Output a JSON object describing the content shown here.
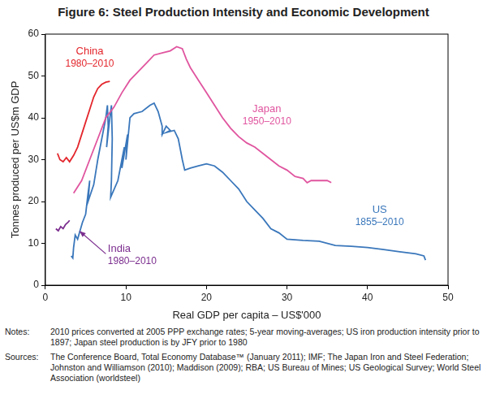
{
  "chart_data": {
    "type": "line",
    "title": "Figure 6: Steel Production Intensity and Economic Development",
    "x_label": "Real GDP per capita – US$'000",
    "y_label": "Tonnes produced per US$m GDP",
    "xlim": [
      0,
      50
    ],
    "xticks": [
      0,
      10,
      20,
      30,
      40,
      50
    ],
    "ylim": [
      0,
      60
    ],
    "yticks": [
      0,
      10,
      20,
      30,
      40,
      50,
      60
    ],
    "grid": false,
    "series": [
      {
        "name": "China",
        "color": "#e3262c",
        "x": [
          1.5,
          1.8,
          2.2,
          2.6,
          3.0,
          3.5,
          4.0,
          4.5,
          5.0,
          5.5,
          6.0,
          6.5,
          7.0,
          7.5,
          8.0
        ],
        "values": [
          31.5,
          30,
          29.5,
          30.5,
          29.5,
          31,
          33,
          36,
          39,
          42,
          45,
          47,
          48,
          48.5,
          48.7
        ]
      },
      {
        "name": "Japan",
        "color": "#e0559f",
        "x": [
          3.5,
          4.5,
          5.5,
          6.5,
          7.5,
          8.5,
          9.5,
          10.5,
          11.5,
          12.5,
          13.5,
          14.5,
          15.5,
          16.3,
          17,
          17.5,
          18,
          19,
          20,
          21,
          22,
          23,
          24,
          25,
          26,
          27,
          28,
          29,
          30,
          31,
          32,
          32.5,
          33,
          34,
          35,
          35.5
        ],
        "values": [
          22,
          25,
          30,
          35,
          40,
          42.5,
          46,
          49,
          51,
          53,
          55,
          55.5,
          56,
          57,
          56.5,
          54,
          52,
          49,
          46,
          43,
          40,
          37.5,
          35.5,
          34,
          33,
          31.5,
          30,
          28.5,
          27.5,
          26,
          25.5,
          24.5,
          25,
          25,
          25,
          24.5
        ]
      },
      {
        "name": "US",
        "color": "#3a77bb",
        "x": [
          3.2,
          3.4,
          3.5,
          3.7,
          4.0,
          4.3,
          4.6,
          5.0,
          5.3,
          5.5,
          5.3,
          6.0,
          6.5,
          7.0,
          7.5,
          7.7,
          7.8,
          7.6,
          8.0,
          8.2,
          8.3,
          8.2,
          8.1,
          9.0,
          9.5,
          9.8,
          9.5,
          10.2,
          10.0,
          10.5,
          11,
          12,
          13,
          13.5,
          14,
          14.5,
          14.5,
          15,
          15.5,
          15,
          16,
          16.5,
          16.8,
          17,
          17.3,
          18,
          19,
          20,
          21,
          22,
          23,
          24,
          25,
          26,
          27,
          28,
          29,
          30,
          32,
          34,
          36,
          38,
          40,
          42,
          44,
          46,
          47,
          47.2
        ],
        "values": [
          7,
          6.5,
          9,
          12,
          11,
          13,
          15,
          17,
          22,
          25,
          20,
          24,
          30,
          35,
          40,
          43,
          38,
          33,
          40,
          43,
          35,
          25,
          21,
          25,
          30,
          33,
          28,
          36,
          30,
          40,
          41,
          41.5,
          43,
          43.5,
          41.5,
          38,
          36,
          38,
          37,
          36.5,
          37,
          35,
          32,
          30,
          27.5,
          28,
          28.5,
          29,
          28.5,
          27,
          25,
          23,
          20,
          18,
          16,
          13.5,
          12.5,
          11,
          10.7,
          10.5,
          9.5,
          9.3,
          9,
          8.5,
          8,
          7.5,
          7,
          6
        ]
      },
      {
        "name": "India",
        "color": "#7b2d8e",
        "x": [
          1.3,
          1.6,
          1.9,
          2.2,
          2.5,
          2.8,
          3.0
        ],
        "values": [
          13.5,
          13,
          14,
          13.5,
          14.5,
          15,
          15.5
        ]
      }
    ],
    "annotations": [
      {
        "series": "China",
        "text": "1980–2010"
      },
      {
        "series": "Japan",
        "text": "1950–2010"
      },
      {
        "series": "US",
        "text": "1855–2010"
      },
      {
        "series": "India",
        "text": "1980–2010"
      }
    ],
    "notes": {
      "label": "Notes:",
      "text": "2010 prices converted at 2005 PPP exchange rates; 5-year moving-averages; US iron production intensity prior to 1897; Japan steel production is by JFY prior to 1980"
    },
    "sources": {
      "label": "Sources:",
      "text": "The Conference Board, Total Economy Database™ (January 2011); IMF; The Japan Iron and Steel Federation; Johnston and Williamson (2010); Maddison (2009); RBA; US Bureau of Mines; US Geological Survey; World Steel Association (worldsteel)"
    }
  }
}
